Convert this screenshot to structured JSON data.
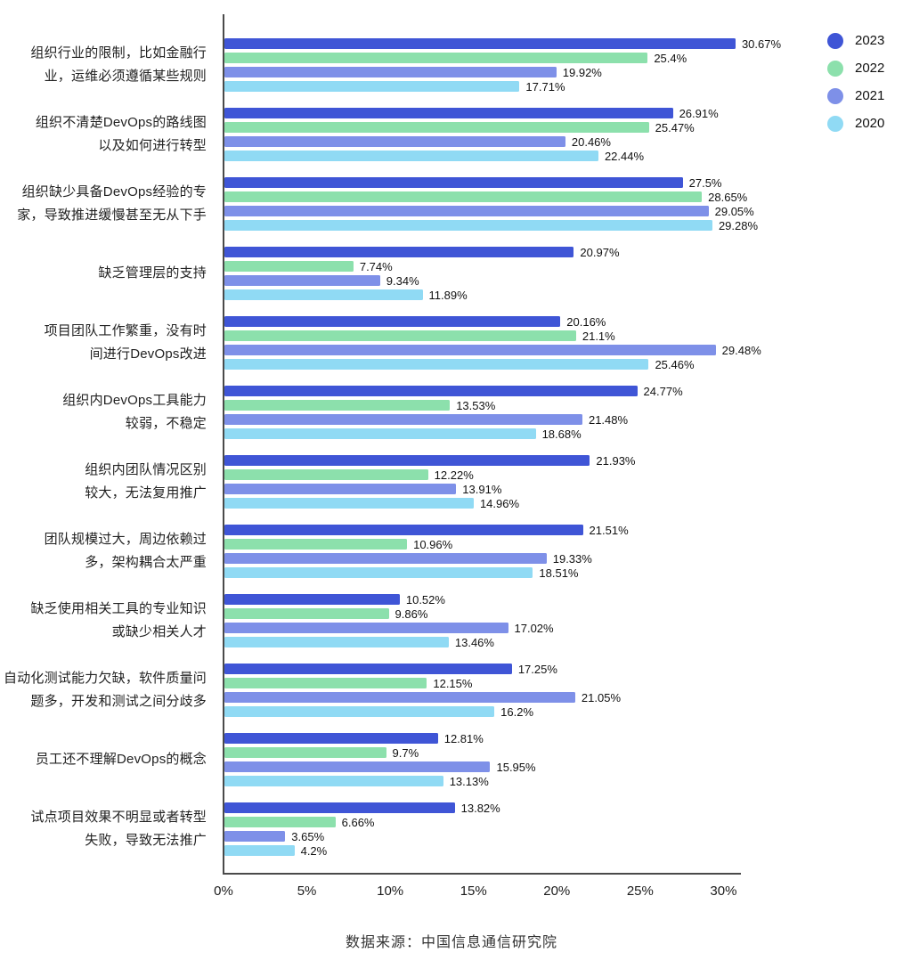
{
  "chart_data": {
    "type": "bar",
    "orientation": "horizontal",
    "title": "",
    "xlabel": "",
    "ylabel": "",
    "xlim": [
      0,
      31.1
    ],
    "grid": false,
    "legend_position": "top-right",
    "value_label_suffix": "%",
    "categories": [
      [
        "组织行业的限制，比如金融行",
        "业，运维必须遵循某些规则"
      ],
      [
        "组织不清楚DevOps的路线图",
        "以及如何进行转型"
      ],
      [
        "组织缺少具备DevOps经验的专",
        "家，导致推进缓慢甚至无从下手"
      ],
      [
        "缺乏管理层的支持"
      ],
      [
        "项目团队工作繁重，没有时",
        "间进行DevOps改进"
      ],
      [
        "组织内DevOps工具能力",
        "较弱，不稳定"
      ],
      [
        "组织内团队情况区别",
        "较大，无法复用推广"
      ],
      [
        "团队规模过大，周边依赖过",
        "多，架构耦合太严重"
      ],
      [
        "缺乏使用相关工具的专业知识",
        "或缺少相关人才"
      ],
      [
        "自动化测试能力欠缺，软件质量问",
        "题多，开发和测试之间分歧多"
      ],
      [
        "员工还不理解DevOps的概念"
      ],
      [
        "试点项目效果不明显或者转型",
        "失败，导致无法推广"
      ]
    ],
    "series": [
      {
        "name": "2023",
        "color": "#3F55D6",
        "values": [
          30.67,
          26.91,
          27.5,
          20.97,
          20.16,
          24.77,
          21.93,
          21.51,
          10.52,
          17.25,
          12.81,
          13.82
        ]
      },
      {
        "name": "2022",
        "color": "#8CE0AC",
        "values": [
          25.4,
          25.47,
          28.65,
          7.74,
          21.1,
          13.53,
          12.22,
          10.96,
          9.86,
          12.15,
          9.7,
          6.66
        ]
      },
      {
        "name": "2021",
        "color": "#7E90E8",
        "values": [
          19.92,
          20.46,
          29.05,
          9.34,
          29.48,
          21.48,
          13.91,
          19.33,
          17.02,
          21.05,
          15.95,
          3.65
        ]
      },
      {
        "name": "2020",
        "color": "#90DAF4",
        "values": [
          17.71,
          22.44,
          29.28,
          11.89,
          25.46,
          18.68,
          14.96,
          18.51,
          13.46,
          16.2,
          13.13,
          4.2
        ]
      }
    ],
    "x_ticks": [
      {
        "label": "0%",
        "value": 0
      },
      {
        "label": "5%",
        "value": 5
      },
      {
        "label": "10%",
        "value": 10
      },
      {
        "label": "15%",
        "value": 15
      },
      {
        "label": "20%",
        "value": 20
      },
      {
        "label": "25%",
        "value": 25
      },
      {
        "label": "30%",
        "value": 30
      }
    ]
  },
  "footer": {
    "source_text": "数据来源：中国信息通信研究院"
  }
}
